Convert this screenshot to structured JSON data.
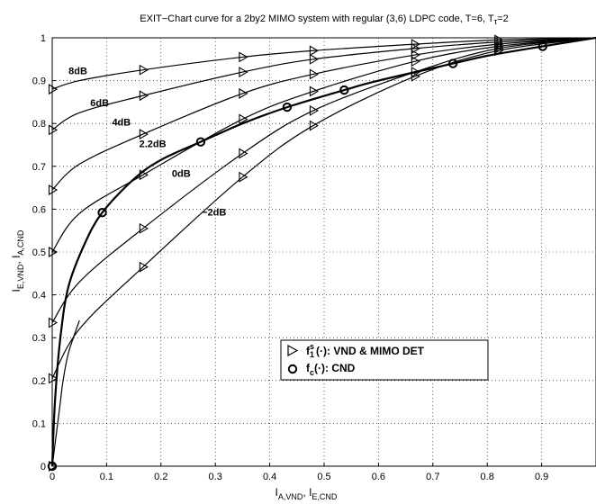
{
  "chart_data": {
    "type": "line",
    "title": "EXIT−Chart curve for a 2by2 MIMO system with regular (3,6) LDPC code,  T=6, T",
    "title_sub": "τ",
    "title_tail": "=2",
    "xlabel": {
      "main": "I",
      "sub1": "A,VND",
      "sep": ",  I",
      "sub2": "E,CND"
    },
    "ylabel": {
      "main": "I",
      "sub1": "E,VND",
      "sep": ",  I",
      "sub2": "A,CND"
    },
    "xlim": [
      0,
      1
    ],
    "ylim": [
      0,
      1
    ],
    "xticks": [
      "0",
      "0.1",
      "0.2",
      "0.3",
      "0.4",
      "0.5",
      "0.6",
      "0.7",
      "0.8",
      "0.9"
    ],
    "yticks": [
      "0",
      "0.1",
      "0.2",
      "0.3",
      "0.4",
      "0.5",
      "0.6",
      "0.7",
      "0.8",
      "0.9",
      "1"
    ],
    "grid": true,
    "legend_position": "lower-right",
    "legend": [
      {
        "marker": "triangle",
        "text_pre": "f",
        "text_sup": "s",
        "text_sub": "1",
        "text_post": "(·):  VND & MIMO DET"
      },
      {
        "marker": "circle",
        "text_pre": "f",
        "text_sup": "",
        "text_sub": "c",
        "text_post": "(·):  CND"
      }
    ],
    "vnd_series": [
      {
        "name": "8dB",
        "label_at": [
          0.03,
          0.915
        ],
        "x": [
          0,
          0.05,
          0.167,
          0.35,
          0.48,
          0.667,
          0.82,
          1.0
        ],
        "y": [
          0.88,
          0.9,
          0.925,
          0.955,
          0.97,
          0.985,
          0.995,
          1.0
        ],
        "markers_x": [
          0,
          0.167,
          0.35,
          0.48,
          0.667,
          0.82
        ]
      },
      {
        "name": "6dB",
        "label_at": [
          0.07,
          0.84
        ],
        "x": [
          0,
          0.05,
          0.167,
          0.35,
          0.48,
          0.667,
          0.82,
          1.0
        ],
        "y": [
          0.785,
          0.825,
          0.865,
          0.92,
          0.95,
          0.975,
          0.99,
          1.0
        ],
        "markers_x": [
          0,
          0.167,
          0.35,
          0.48,
          0.667,
          0.82
        ]
      },
      {
        "name": "4dB",
        "label_at": [
          0.11,
          0.795
        ],
        "x": [
          0,
          0.05,
          0.167,
          0.35,
          0.48,
          0.667,
          0.82,
          1.0
        ],
        "y": [
          0.645,
          0.705,
          0.775,
          0.87,
          0.915,
          0.96,
          0.985,
          1.0
        ],
        "markers_x": [
          0,
          0.167,
          0.35,
          0.48,
          0.667,
          0.82
        ]
      },
      {
        "name": "2.2dB",
        "label_at": [
          0.16,
          0.745
        ],
        "x": [
          0,
          0.05,
          0.167,
          0.35,
          0.48,
          0.667,
          0.82,
          1.0
        ],
        "y": [
          0.5,
          0.59,
          0.68,
          0.81,
          0.875,
          0.945,
          0.98,
          1.0
        ],
        "markers_x": [
          0,
          0.167,
          0.35,
          0.48,
          0.667,
          0.82
        ]
      },
      {
        "name": "0dB",
        "label_at": [
          0.22,
          0.675
        ],
        "x": [
          0,
          0.05,
          0.167,
          0.35,
          0.48,
          0.667,
          0.82,
          1.0
        ],
        "y": [
          0.335,
          0.43,
          0.555,
          0.73,
          0.83,
          0.92,
          0.975,
          1.0
        ],
        "markers_x": [
          0,
          0.167,
          0.35,
          0.48,
          0.667,
          0.82
        ]
      },
      {
        "name": "−2dB",
        "label_at": [
          0.275,
          0.585
        ],
        "x": [
          0,
          0.05,
          0.167,
          0.35,
          0.48,
          0.667,
          0.82,
          1.0
        ],
        "y": [
          0.205,
          0.32,
          0.465,
          0.675,
          0.795,
          0.91,
          0.97,
          1.0
        ],
        "markers_x": [
          0,
          0.167,
          0.35,
          0.48,
          0.667,
          0.82
        ]
      },
      {
        "name": "",
        "label_at": null,
        "x": [
          0,
          0.005,
          0.01,
          0.015,
          0.02,
          0.03,
          0.05
        ],
        "y": [
          0.0,
          0.05,
          0.1,
          0.15,
          0.2,
          0.265,
          0.34
        ],
        "markers_x": [
          0
        ]
      }
    ],
    "cnd_series": {
      "name": "",
      "x": [
        0,
        0.005,
        0.015,
        0.03,
        0.06,
        0.092,
        0.15,
        0.2,
        0.273,
        0.35,
        0.432,
        0.537,
        0.6,
        0.737,
        0.8,
        0.902,
        1.0
      ],
      "y": [
        0.0,
        0.15,
        0.3,
        0.42,
        0.52,
        0.592,
        0.67,
        0.715,
        0.757,
        0.8,
        0.838,
        0.878,
        0.9,
        0.94,
        0.958,
        0.98,
        1.0
      ],
      "markers": [
        [
          0,
          0.0
        ],
        [
          0.092,
          0.592
        ],
        [
          0.273,
          0.757
        ],
        [
          0.432,
          0.838
        ],
        [
          0.537,
          0.878
        ],
        [
          0.737,
          0.94
        ],
        [
          0.902,
          0.98
        ]
      ]
    }
  }
}
